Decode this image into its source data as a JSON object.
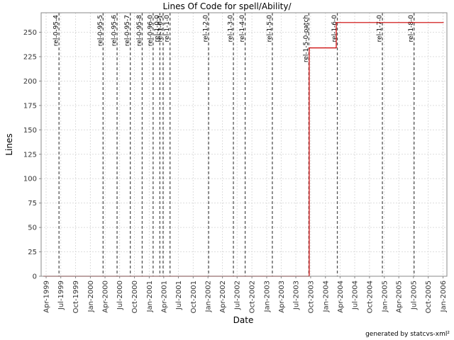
{
  "footer": "generated by statcvs-xml²",
  "chart_data": {
    "type": "line",
    "title": "Lines Of Code for spell/Ability/",
    "xlabel": "Date",
    "ylabel": "Lines",
    "x_range": [
      "1999-03-01",
      "2006-01-25"
    ],
    "ylim": [
      0,
      270
    ],
    "y_ticks": [
      0,
      25,
      50,
      75,
      100,
      125,
      150,
      175,
      200,
      225,
      250
    ],
    "x_ticks": [
      {
        "date": "1999-04-01",
        "label": "Apr-1999"
      },
      {
        "date": "1999-07-01",
        "label": "Jul-1999"
      },
      {
        "date": "1999-10-01",
        "label": "Oct-1999"
      },
      {
        "date": "2000-01-01",
        "label": "Jan-2000"
      },
      {
        "date": "2000-04-01",
        "label": "Apr-2000"
      },
      {
        "date": "2000-07-01",
        "label": "Jul-2000"
      },
      {
        "date": "2000-10-01",
        "label": "Oct-2000"
      },
      {
        "date": "2001-01-01",
        "label": "Jan-2001"
      },
      {
        "date": "2001-04-01",
        "label": "Apr-2001"
      },
      {
        "date": "2001-07-01",
        "label": "Jul-2001"
      },
      {
        "date": "2001-10-01",
        "label": "Oct-2001"
      },
      {
        "date": "2002-01-01",
        "label": "Jan-2002"
      },
      {
        "date": "2002-04-01",
        "label": "Apr-2002"
      },
      {
        "date": "2002-07-01",
        "label": "Jul-2002"
      },
      {
        "date": "2002-10-01",
        "label": "Oct-2002"
      },
      {
        "date": "2003-01-01",
        "label": "Jan-2003"
      },
      {
        "date": "2003-04-01",
        "label": "Apr-2003"
      },
      {
        "date": "2003-07-01",
        "label": "Jul-2003"
      },
      {
        "date": "2003-10-01",
        "label": "Oct-2003"
      },
      {
        "date": "2004-01-01",
        "label": "Jan-2004"
      },
      {
        "date": "2004-04-01",
        "label": "Apr-2004"
      },
      {
        "date": "2004-07-01",
        "label": "Jul-2004"
      },
      {
        "date": "2004-10-01",
        "label": "Oct-2004"
      },
      {
        "date": "2005-01-01",
        "label": "Jan-2005"
      },
      {
        "date": "2005-04-01",
        "label": "Apr-2005"
      },
      {
        "date": "2005-07-01",
        "label": "Jul-2005"
      },
      {
        "date": "2005-10-01",
        "label": "Oct-2005"
      },
      {
        "date": "2006-01-01",
        "label": "Jan-2006"
      }
    ],
    "grid": true,
    "line_color": "#cc0000",
    "marker_color": "#555555",
    "series": [
      {
        "points": [
          {
            "x": "1999-03-15",
            "y": 0
          },
          {
            "x": "2003-09-22",
            "y": 0
          },
          {
            "x": "2003-09-22",
            "y": 234
          },
          {
            "x": "2004-03-08",
            "y": 234
          },
          {
            "x": "2004-03-08",
            "y": 260
          },
          {
            "x": "2006-01-05",
            "y": 260
          }
        ]
      }
    ],
    "markers": [
      {
        "date": "1999-06-20",
        "label": "rel-0-95-4"
      },
      {
        "date": "2000-03-20",
        "label": "rel-0-95-5"
      },
      {
        "date": "2000-06-15",
        "label": "rel-0-95-6"
      },
      {
        "date": "2000-09-05",
        "label": "rel-0-95-7"
      },
      {
        "date": "2000-11-18",
        "label": "rel-0-95-8"
      },
      {
        "date": "2001-01-25",
        "label": "rel-0-96-0"
      },
      {
        "date": "2001-03-08",
        "label": "rel-1-0-0"
      },
      {
        "date": "2001-03-28",
        "label": "rel-1-0-1"
      },
      {
        "date": "2001-05-10",
        "label": "rel-1-1-0"
      },
      {
        "date": "2002-01-05",
        "label": "rel-1-2-0"
      },
      {
        "date": "2002-06-08",
        "label": "rel-1-3-0"
      },
      {
        "date": "2002-08-20",
        "label": "rel-1-4-0"
      },
      {
        "date": "2003-02-05",
        "label": "rel-1-5-0"
      },
      {
        "date": "2003-09-20",
        "label": "rel-1-5-0-patch"
      },
      {
        "date": "2004-03-15",
        "label": "rel-1-6-0"
      },
      {
        "date": "2004-12-20",
        "label": "rel-1-7-0"
      },
      {
        "date": "2005-07-05",
        "label": "rel-1-8-0"
      }
    ]
  }
}
